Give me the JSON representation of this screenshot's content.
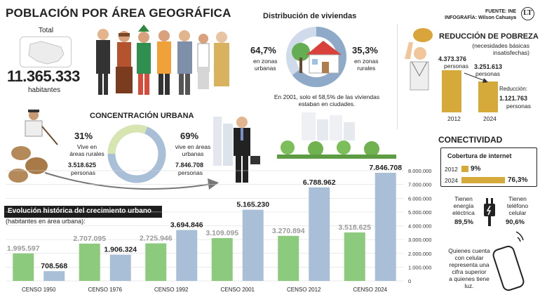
{
  "header": {
    "title": "POBLACIÓN POR ÁREA GEOGRÁFICA",
    "source_label": "FUENTE:",
    "source_value": "INE",
    "infografia_label": "INFOGRAFÍA:",
    "infografia_value": "Wilson Cahuaya",
    "logo_text": "LT"
  },
  "total": {
    "label": "Total",
    "value": "11.365.333",
    "unit": "habitantes"
  },
  "viviendas": {
    "title": "Distribución de viviendas",
    "urban_pct": "64,7%",
    "urban_label1": "en zonas",
    "urban_label2": "urbanas",
    "rural_pct": "35,3%",
    "rural_label1": "en zonas",
    "rural_label2": "rurales",
    "note1": "En 2001, solo el 58,5% de las viviendas",
    "note2": "estaban en ciudades."
  },
  "pobreza": {
    "title": "REDUCCIÓN DE POBREZA",
    "subtitle1": "(necesidades básicas",
    "subtitle2": "insatisfechas)",
    "v2012": "4.373.376",
    "v2012_unit": "personas",
    "v2024": "3.251.613",
    "v2024_unit": "personas",
    "reduction_label": "Reducción:",
    "reduction_value": "1.121.763",
    "reduction_unit": "personas",
    "year1": "2012",
    "year2": "2024"
  },
  "concentracion": {
    "title": "CONCENTRACIÓN URBANA",
    "rural_pct": "31%",
    "rural_l1": "Vive en",
    "rural_l2": "áreas rurales",
    "rural_count": "3.518.625",
    "rural_unit": "personas",
    "urban_pct": "69%",
    "urban_l1": "vive en áreas",
    "urban_l2": "urbanas",
    "urban_count": "7.846.708",
    "urban_unit": "personas"
  },
  "conectividad": {
    "title": "CONECTIVIDAD",
    "subtitle": "Cobertura de internet",
    "y2012": "2012",
    "p2012": "9%",
    "y2024": "2024",
    "p2024": "76,3%",
    "energy_l1": "Tienen",
    "energy_l2": "energía",
    "energy_l3": "eléctrica",
    "energy_pct": "89,5%",
    "phone_l1": "Tienen",
    "phone_l2": "teléfono",
    "phone_l3": "celular",
    "phone_pct": "90,6%",
    "note1": "Quienes cuenta",
    "note2": "con celular",
    "note3": "representa una",
    "note4": "cifra superior",
    "note5": "a quienes tiene luz."
  },
  "colors": {
    "green": "#8ccb7e",
    "blue": "#a9bfd8",
    "gold": "#d5a93a",
    "dark": "#1d1d1d"
  },
  "chart_data": {
    "type": "bar",
    "title": "Evolución histórica del crecimiento urbano",
    "subtitle": "(habitantes en área urbana):",
    "categories": [
      "CENSO 1950",
      "CENSO 1976",
      "CENSO 1992",
      "CENSO 2001",
      "CENSO 2012",
      "CENSO 2024"
    ],
    "series": [
      {
        "name": "",
        "color": "#8ccb7e",
        "values": [
          1995597,
          2707095,
          2725946,
          3109095,
          3270894,
          3518625
        ],
        "labels": [
          "1.995.597",
          "2.707.095",
          "2.725.946",
          "3.109.095",
          "3.270.894",
          "3.518.625"
        ]
      },
      {
        "name": "",
        "color": "#a9bfd8",
        "values": [
          708568,
          1906324,
          3694846,
          5165230,
          6788962,
          7846708
        ],
        "labels": [
          "708.568",
          "1.906.324",
          "3.694.846",
          "5.165.230",
          "6.788.962",
          "7.846.708"
        ]
      }
    ],
    "yticks": [
      "0",
      "1.000.000",
      "2.000.000",
      "3.000.000",
      "4.000.000",
      "5.000.000",
      "6.000.000",
      "7.000.000",
      "8.000.000"
    ],
    "ylim": [
      0,
      8000000
    ],
    "grid": true
  }
}
